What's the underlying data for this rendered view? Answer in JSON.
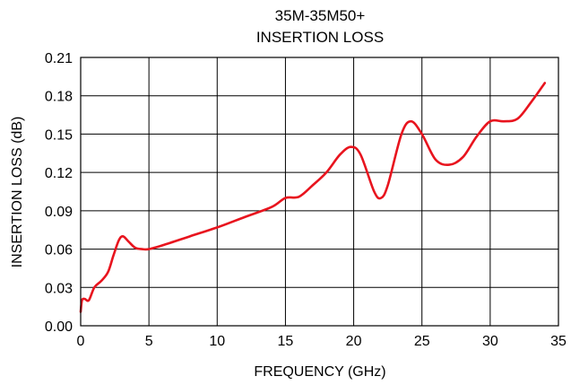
{
  "chart_data": {
    "type": "line",
    "title": "35M-35M50+",
    "subtitle": "INSERTION LOSS",
    "xlabel": "FREQUENCY (GHz)",
    "ylabel": "INSERTION LOSS (dB)",
    "xlim": [
      0,
      35
    ],
    "ylim": [
      0,
      0.21
    ],
    "xticks": [
      0,
      5,
      10,
      15,
      20,
      25,
      30,
      35
    ],
    "xtick_labels": [
      "0",
      "5",
      "10",
      "15",
      "20",
      "25",
      "30",
      "35"
    ],
    "yticks": [
      0,
      0.03,
      0.06,
      0.09,
      0.12,
      0.15,
      0.18,
      0.21
    ],
    "ytick_labels": [
      "0.00",
      "0.03",
      "0.06",
      "0.09",
      "0.12",
      "0.15",
      "0.18",
      "0.21"
    ],
    "grid": true,
    "line_color": "#e8141e",
    "series": [
      {
        "x": [
          0.0,
          0.1,
          0.3,
          0.6,
          1.0,
          1.5,
          2.0,
          2.4,
          2.8,
          3.1,
          3.5,
          4.0,
          4.5,
          5.0,
          6.0,
          8.0,
          10.0,
          12.0,
          14.0,
          15.0,
          16.0,
          17.0,
          18.0,
          19.0,
          19.8,
          20.5,
          21.5,
          22.0,
          22.5,
          23.5,
          24.2,
          25.0,
          26.0,
          27.0,
          28.0,
          29.0,
          30.0,
          31.0,
          32.0,
          33.0,
          34.0
        ],
        "y": [
          0.011,
          0.02,
          0.021,
          0.02,
          0.03,
          0.035,
          0.042,
          0.055,
          0.067,
          0.07,
          0.066,
          0.061,
          0.06,
          0.06,
          0.063,
          0.07,
          0.077,
          0.085,
          0.093,
          0.1,
          0.101,
          0.11,
          0.12,
          0.134,
          0.14,
          0.134,
          0.105,
          0.1,
          0.11,
          0.15,
          0.16,
          0.15,
          0.13,
          0.126,
          0.132,
          0.148,
          0.16,
          0.16,
          0.162,
          0.175,
          0.19
        ]
      }
    ]
  }
}
